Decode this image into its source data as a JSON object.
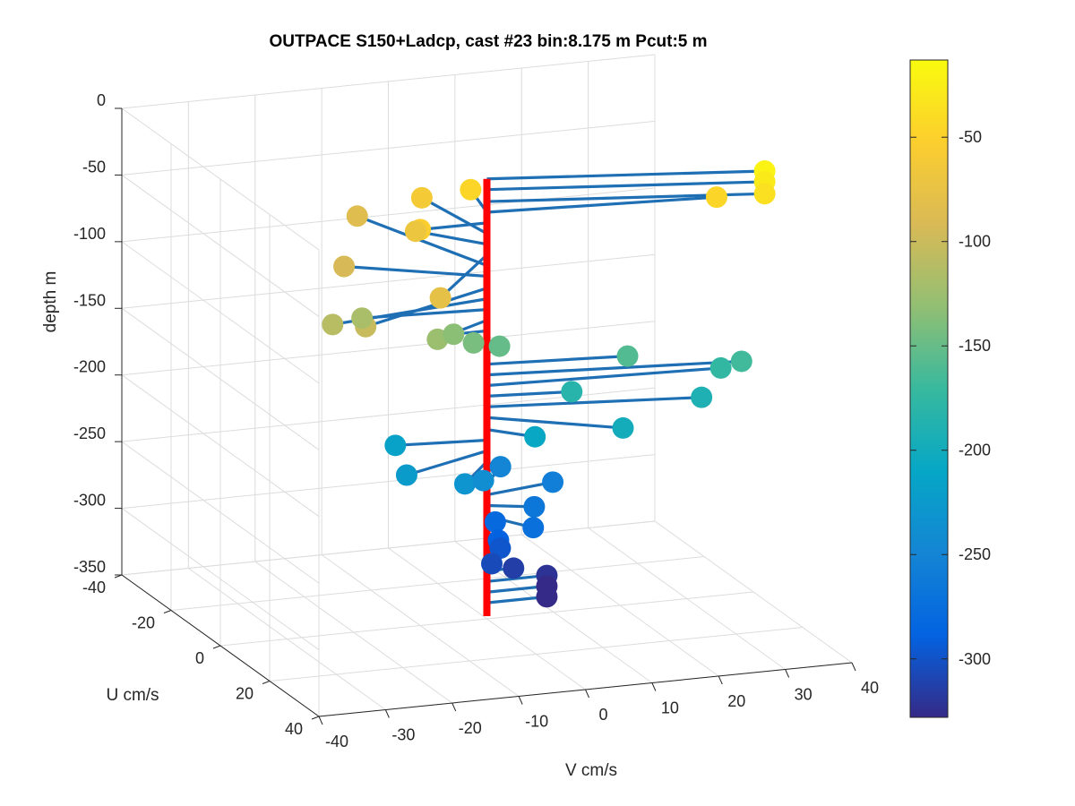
{
  "chart_data": {
    "type": "scatter",
    "title": "OUTPACE S150+Ladcp, cast #23 bin:8.175 m  Pcut:5 m",
    "xlabel": "V cm/s",
    "ylabel": "U cm/s",
    "zlabel": "depth m",
    "xlim": [
      -40,
      40
    ],
    "ylim": [
      -40,
      40
    ],
    "zlim": [
      -350,
      0
    ],
    "x_ticks": [
      "-40",
      "-30",
      "-20",
      "-10",
      "0",
      "10",
      "20",
      "30",
      "40"
    ],
    "y_ticks": [
      "-40",
      "-20",
      "0",
      "20",
      "40"
    ],
    "z_ticks": [
      "0",
      "-50",
      "-100",
      "-150",
      "-200",
      "-250",
      "-300",
      "-350"
    ],
    "grid": true,
    "colorbar": {
      "limits": [
        -328,
        -13
      ],
      "ticks": [
        "-50",
        "-100",
        "-150",
        "-200",
        "-250",
        "-300"
      ],
      "colormap": [
        "#352a87",
        "#0363e1",
        "#1485d4",
        "#06a7c6",
        "#38b99e",
        "#92bf73",
        "#d9ba56",
        "#fcce2e",
        "#f9fb0e"
      ]
    },
    "stick_color": "#1f6fb4",
    "axis_color": "#ff0000",
    "points": [
      {
        "depth": -20,
        "v": 38,
        "u": 10
      },
      {
        "depth": -28,
        "v": 38,
        "u": 10
      },
      {
        "depth": -37,
        "v": 38,
        "u": 10
      },
      {
        "depth": -45,
        "v": 2,
        "u": -12
      },
      {
        "depth": -45,
        "v": 33,
        "u": 4
      },
      {
        "depth": -53,
        "v": -10,
        "u": 0
      },
      {
        "depth": -61,
        "v": -2,
        "u": -21
      },
      {
        "depth": -69,
        "v": -7,
        "u": -10
      },
      {
        "depth": -77,
        "v": -14,
        "u": 19
      },
      {
        "depth": -85,
        "v": -8,
        "u": -31
      },
      {
        "depth": -93,
        "v": -17,
        "u": -12
      },
      {
        "depth": -102,
        "v": -23,
        "u": 13
      },
      {
        "depth": -110,
        "v": -25,
        "u": 5
      },
      {
        "depth": -118,
        "v": -18,
        "u": -2
      },
      {
        "depth": -126,
        "v": -10,
        "u": 7
      },
      {
        "depth": -134,
        "v": -5,
        "u": 0
      },
      {
        "depth": -142,
        "v": -2,
        "u": 0
      },
      {
        "depth": -151,
        "v": 3,
        "u": -3
      },
      {
        "depth": -159,
        "v": 20,
        "u": 3
      },
      {
        "depth": -167,
        "v": 36,
        "u": 6
      },
      {
        "depth": -175,
        "v": 34,
        "u": 3
      },
      {
        "depth": -183,
        "v": 12,
        "u": 2
      },
      {
        "depth": -191,
        "v": 30,
        "u": 6
      },
      {
        "depth": -199,
        "v": 16,
        "u": 12
      },
      {
        "depth": -208,
        "v": 5,
        "u": 6
      },
      {
        "depth": -216,
        "v": -13,
        "u": -2
      },
      {
        "depth": -224,
        "v": -15,
        "u": 8
      },
      {
        "depth": -232,
        "v": -7,
        "u": 10
      },
      {
        "depth": -240,
        "v": -2,
        "u": 4
      },
      {
        "depth": -249,
        "v": 5,
        "u": -8
      },
      {
        "depth": -257,
        "v": 11,
        "u": -3
      },
      {
        "depth": -265,
        "v": 6,
        "u": 3
      },
      {
        "depth": -273,
        "v": 4,
        "u": 8
      },
      {
        "depth": -281,
        "v": 2,
        "u": -2
      },
      {
        "depth": -289,
        "v": 1,
        "u": 2
      },
      {
        "depth": -298,
        "v": 2,
        "u": 0
      },
      {
        "depth": -306,
        "v": 0,
        "u": 2
      },
      {
        "depth": -314,
        "v": 4,
        "u": 0
      },
      {
        "depth": -322,
        "v": 9,
        "u": 0
      },
      {
        "depth": -330,
        "v": 9,
        "u": 0
      },
      {
        "depth": -338,
        "v": 9,
        "u": 0
      }
    ]
  }
}
